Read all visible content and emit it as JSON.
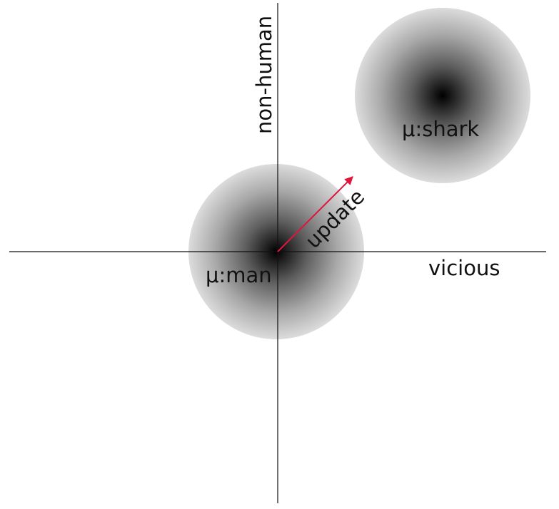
{
  "axes": {
    "x_label": "vicious",
    "y_label": "non-human"
  },
  "clusters": [
    {
      "id": "man",
      "label": "μ:man"
    },
    {
      "id": "shark",
      "label": "μ:shark"
    }
  ],
  "update_vector": {
    "label": "update",
    "color": "#e0153a"
  },
  "colors": {
    "axis": "#111111",
    "cluster_center": "#000000",
    "cluster_edge": "#dcdcdc",
    "text": "#111111"
  }
}
